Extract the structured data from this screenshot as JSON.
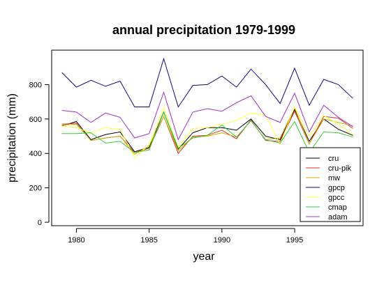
{
  "chart_data": {
    "type": "line",
    "title": "annual precipitation 1979-1999",
    "xlabel": "year",
    "ylabel": "precipitation (mm)",
    "xlim": [
      1978.3,
      1999.7
    ],
    "ylim": [
      -20,
      1000
    ],
    "xticks": [
      1980,
      1985,
      1990,
      1995
    ],
    "yticks": [
      0,
      200,
      400,
      600,
      800
    ],
    "grid": false,
    "legend_position": "bottom-right",
    "x": [
      1979,
      1980,
      1981,
      1982,
      1983,
      1984,
      1985,
      1986,
      1987,
      1988,
      1989,
      1990,
      1991,
      1992,
      1993,
      1994,
      1995,
      1996,
      1997,
      1998,
      1999
    ],
    "series": [
      {
        "name": "cru",
        "color": "#000000",
        "values": [
          560,
          585,
          480,
          510,
          525,
          410,
          435,
          640,
          425,
          520,
          550,
          550,
          535,
          600,
          500,
          480,
          655,
          470,
          600,
          540,
          505
        ]
      },
      {
        "name": "cru-pik",
        "color": "#e03030",
        "values": [
          570,
          575,
          475,
          490,
          500,
          405,
          430,
          615,
          400,
          500,
          505,
          535,
          485,
          595,
          475,
          470,
          645,
          455,
          615,
          605,
          545
        ]
      },
      {
        "name": "mw",
        "color": "#c8b400",
        "values": [
          565,
          570,
          475,
          490,
          500,
          395,
          445,
          615,
          415,
          495,
          500,
          520,
          495,
          590,
          480,
          490,
          665,
          455,
          600,
          580,
          560
        ]
      },
      {
        "name": "gpcp",
        "color": "#0a0a80",
        "values": [
          870,
          785,
          825,
          790,
          820,
          670,
          670,
          950,
          670,
          795,
          800,
          850,
          785,
          890,
          800,
          690,
          895,
          680,
          830,
          800,
          720
        ]
      },
      {
        "name": "gpcc",
        "color": "#ffff40",
        "values": [
          560,
          550,
          520,
          550,
          540,
          375,
          450,
          665,
          435,
          545,
          550,
          570,
          590,
          635,
          620,
          455,
          670,
          500,
          620,
          570,
          510
        ]
      },
      {
        "name": "cmap",
        "color": "#30cc30",
        "values": [
          515,
          515,
          520,
          460,
          470,
          405,
          420,
          640,
          430,
          490,
          505,
          565,
          495,
          590,
          480,
          460,
          585,
          405,
          525,
          520,
          495
        ]
      },
      {
        "name": "adam",
        "color": "#a030c8",
        "values": [
          650,
          640,
          580,
          635,
          610,
          490,
          515,
          755,
          480,
          640,
          660,
          645,
          695,
          735,
          615,
          580,
          750,
          525,
          680,
          610,
          555
        ]
      }
    ]
  }
}
